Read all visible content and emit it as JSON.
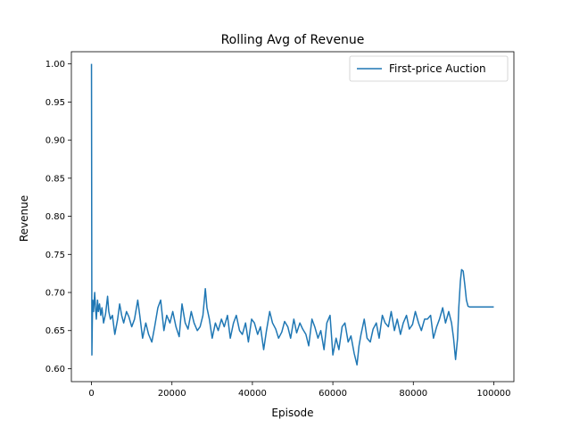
{
  "chart_data": {
    "type": "line",
    "title": "Rolling Avg of Revenue",
    "xlabel": "Episode",
    "ylabel": "Revenue",
    "xlim": [
      -5000,
      105000
    ],
    "ylim": [
      0.583,
      1.016
    ],
    "x_ticks": [
      {
        "value": 0,
        "label": "0"
      },
      {
        "value": 20000,
        "label": "20000"
      },
      {
        "value": 40000,
        "label": "40000"
      },
      {
        "value": 60000,
        "label": "60000"
      },
      {
        "value": 80000,
        "label": "80000"
      },
      {
        "value": 100000,
        "label": "100000"
      }
    ],
    "y_ticks": [
      {
        "value": 0.6,
        "label": "0.60"
      },
      {
        "value": 0.65,
        "label": "0.65"
      },
      {
        "value": 0.7,
        "label": "0.70"
      },
      {
        "value": 0.75,
        "label": "0.75"
      },
      {
        "value": 0.8,
        "label": "0.80"
      },
      {
        "value": 0.85,
        "label": "0.85"
      },
      {
        "value": 0.9,
        "label": "0.90"
      },
      {
        "value": 0.95,
        "label": "0.95"
      },
      {
        "value": 1.0,
        "label": "1.00"
      }
    ],
    "grid": false,
    "legend": {
      "position": "top-right"
    },
    "series": [
      {
        "name": "First-price Auction",
        "color": "#1f77b4",
        "x": [
          0,
          100,
          200,
          300,
          500,
          800,
          1000,
          1200,
          1500,
          1700,
          2000,
          2300,
          2600,
          3000,
          3500,
          4000,
          4300,
          4700,
          5200,
          5800,
          6500,
          7000,
          7500,
          8000,
          8700,
          9300,
          10000,
          10700,
          11500,
          12000,
          12700,
          13500,
          14200,
          15000,
          15700,
          16500,
          17200,
          18000,
          18700,
          19500,
          20200,
          21000,
          21800,
          22500,
          23300,
          24000,
          24800,
          25500,
          26300,
          27000,
          27700,
          28300,
          28700,
          29300,
          30000,
          30800,
          31500,
          32300,
          33000,
          33800,
          34500,
          35300,
          36000,
          36800,
          37500,
          38300,
          39000,
          39800,
          40500,
          41300,
          42000,
          42800,
          43500,
          44300,
          45000,
          45800,
          46500,
          47300,
          48000,
          48800,
          49500,
          50300,
          51000,
          51800,
          52500,
          53300,
          54000,
          54800,
          55500,
          56300,
          57000,
          57800,
          58500,
          59300,
          60000,
          60800,
          61500,
          62300,
          63000,
          63800,
          64500,
          65300,
          66000,
          66500,
          67000,
          67800,
          68500,
          69300,
          70000,
          70800,
          71500,
          72300,
          73000,
          73800,
          74500,
          75300,
          76000,
          76800,
          77500,
          78300,
          79000,
          79800,
          80500,
          81300,
          82000,
          82800,
          83500,
          84300,
          85000,
          85800,
          86500,
          87300,
          88000,
          88800,
          89500,
          90000,
          90500,
          91000,
          91300,
          91700,
          92000,
          92400,
          92800,
          93200,
          93600,
          94000,
          95000,
          96000,
          97000,
          98000,
          99000,
          100000
        ],
        "values": [
          1.0,
          0.618,
          0.66,
          0.69,
          0.675,
          0.7,
          0.68,
          0.665,
          0.69,
          0.675,
          0.685,
          0.67,
          0.68,
          0.66,
          0.672,
          0.695,
          0.675,
          0.665,
          0.67,
          0.645,
          0.665,
          0.685,
          0.67,
          0.66,
          0.675,
          0.668,
          0.655,
          0.665,
          0.69,
          0.67,
          0.64,
          0.66,
          0.645,
          0.635,
          0.655,
          0.68,
          0.69,
          0.65,
          0.67,
          0.66,
          0.675,
          0.655,
          0.642,
          0.685,
          0.66,
          0.652,
          0.675,
          0.66,
          0.65,
          0.655,
          0.67,
          0.705,
          0.68,
          0.665,
          0.64,
          0.66,
          0.65,
          0.665,
          0.655,
          0.67,
          0.64,
          0.66,
          0.67,
          0.65,
          0.645,
          0.66,
          0.635,
          0.665,
          0.66,
          0.645,
          0.655,
          0.625,
          0.65,
          0.675,
          0.66,
          0.652,
          0.64,
          0.648,
          0.662,
          0.655,
          0.64,
          0.665,
          0.647,
          0.66,
          0.652,
          0.645,
          0.63,
          0.665,
          0.655,
          0.64,
          0.65,
          0.625,
          0.66,
          0.67,
          0.618,
          0.64,
          0.625,
          0.655,
          0.66,
          0.635,
          0.643,
          0.62,
          0.605,
          0.63,
          0.645,
          0.665,
          0.64,
          0.635,
          0.652,
          0.66,
          0.64,
          0.67,
          0.66,
          0.655,
          0.675,
          0.65,
          0.665,
          0.645,
          0.66,
          0.67,
          0.652,
          0.658,
          0.675,
          0.66,
          0.65,
          0.665,
          0.665,
          0.67,
          0.64,
          0.655,
          0.665,
          0.68,
          0.66,
          0.675,
          0.66,
          0.64,
          0.612,
          0.64,
          0.68,
          0.715,
          0.73,
          0.728,
          0.71,
          0.69,
          0.682,
          0.681,
          0.681,
          0.681,
          0.681,
          0.681,
          0.681,
          0.681
        ]
      }
    ]
  }
}
